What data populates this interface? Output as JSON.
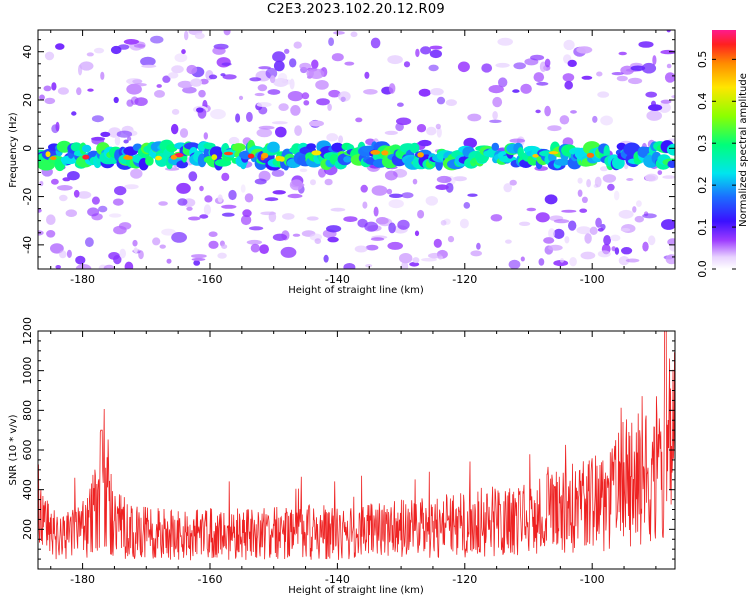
{
  "title": "C2E3.2023.102.20.12.R09",
  "colors": {
    "snr_line": "#ee2222"
  },
  "chart_data": [
    {
      "type": "heatmap",
      "xlabel": "Height of straight line (km)",
      "ylabel": "Frequency (Hz)",
      "xlim": [
        -187,
        -87
      ],
      "ylim": [
        -50,
        49
      ],
      "xticks": [
        -180,
        -160,
        -140,
        -120,
        -100
      ],
      "yticks": [
        -40,
        -20,
        0,
        20,
        40
      ],
      "colorbar": {
        "label": "Normalized spectral amplitude",
        "range": [
          0.0,
          0.57
        ],
        "ticks": [
          0.0,
          0.1,
          0.2,
          0.3,
          0.4,
          0.5
        ],
        "colormap": "gist_rainbow_reversed"
      },
      "features": {
        "band_center_hz": -3,
        "band_halfwidth_hz": 4,
        "band_typical_amplitude": 0.25,
        "band_peak_amplitude": 0.55,
        "background_amplitude": 0.03
      }
    },
    {
      "type": "line",
      "xlabel": "Height of straight line (km)",
      "ylabel": "SNR (10 * v/v)",
      "xlim": [
        -187,
        -87
      ],
      "ylim": [
        0,
        1200
      ],
      "xticks": [
        -180,
        -160,
        -140,
        -120,
        -100
      ],
      "yticks": [
        200,
        400,
        600,
        800,
        1000,
        1200
      ],
      "series": [
        {
          "x": [
            -187,
            -185,
            -183,
            -181,
            -179,
            -178,
            -177,
            -176,
            -175,
            -173,
            -170,
            -165,
            -160,
            -155,
            -150,
            -145,
            -140,
            -135,
            -130,
            -125,
            -120,
            -115,
            -110,
            -107,
            -105,
            -102,
            -100,
            -97,
            -95,
            -93,
            -91,
            -89.5,
            -88.5,
            -87
          ],
          "y": [
            250,
            180,
            170,
            190,
            230,
            300,
            430,
            330,
            240,
            200,
            180,
            170,
            175,
            175,
            180,
            185,
            180,
            190,
            200,
            210,
            230,
            240,
            250,
            280,
            300,
            310,
            320,
            360,
            430,
            450,
            470,
            520,
            450,
            640
          ]
        }
      ]
    }
  ]
}
